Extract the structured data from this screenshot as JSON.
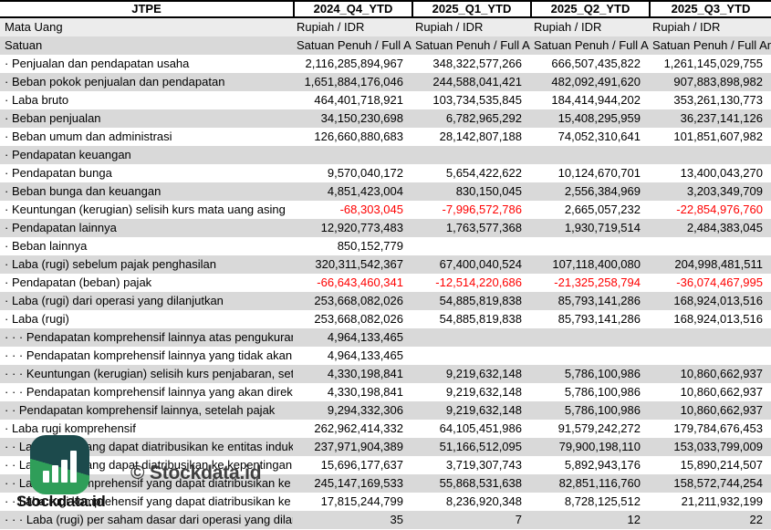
{
  "table": {
    "ticker": "JTPE",
    "columns": [
      "2024_Q4_YTD",
      "2025_Q1_YTD",
      "2025_Q2_YTD",
      "2025_Q3_YTD"
    ],
    "rows": [
      {
        "label": "Mata Uang",
        "bg": "l",
        "align": "left",
        "values": [
          "Rupiah / IDR",
          "Rupiah / IDR",
          "Rupiah / IDR",
          "Rupiah / IDR"
        ]
      },
      {
        "label": "Satuan",
        "bg": "g",
        "align": "left",
        "values": [
          "Satuan Penuh / Full Amount",
          "Satuan Penuh / Full Amount",
          "Satuan Penuh / Full Amount",
          "Satuan Penuh / Full Amount"
        ]
      },
      {
        "label": "· Penjualan dan pendapatan usaha",
        "bg": "w",
        "values": [
          "2,116,285,894,967",
          "348,322,577,266",
          "666,507,435,822",
          "1,261,145,029,755"
        ]
      },
      {
        "label": "· Beban pokok penjualan dan pendapatan",
        "bg": "g",
        "values": [
          "1,651,884,176,046",
          "244,588,041,421",
          "482,092,491,620",
          "907,883,898,982"
        ]
      },
      {
        "label": "· Laba bruto",
        "bg": "w",
        "values": [
          "464,401,718,921",
          "103,734,535,845",
          "184,414,944,202",
          "353,261,130,773"
        ]
      },
      {
        "label": "· Beban penjualan",
        "bg": "g",
        "values": [
          "34,150,230,698",
          "6,782,965,292",
          "15,408,295,959",
          "36,237,141,126"
        ]
      },
      {
        "label": "· Beban umum dan administrasi",
        "bg": "w",
        "values": [
          "126,660,880,683",
          "28,142,807,188",
          "74,052,310,641",
          "101,851,607,982"
        ]
      },
      {
        "label": "· Pendapatan keuangan",
        "bg": "g",
        "values": [
          "",
          "",
          "",
          ""
        ]
      },
      {
        "label": "· Pendapatan bunga",
        "bg": "w",
        "values": [
          "9,570,040,172",
          "5,654,422,622",
          "10,124,670,701",
          "13,400,043,270"
        ]
      },
      {
        "label": "· Beban bunga dan keuangan",
        "bg": "g",
        "values": [
          "4,851,423,004",
          "830,150,045",
          "2,556,384,969",
          "3,203,349,709"
        ]
      },
      {
        "label": "· Keuntungan (kerugian) selisih kurs mata uang asing",
        "bg": "w",
        "values": [
          "-68,303,045",
          "-7,996,572,786",
          "2,665,057,232",
          "-22,854,976,760"
        ]
      },
      {
        "label": "· Pendapatan lainnya",
        "bg": "g",
        "values": [
          "12,920,773,483",
          "1,763,577,368",
          "1,930,719,514",
          "2,484,383,045"
        ]
      },
      {
        "label": "· Beban lainnya",
        "bg": "w",
        "values": [
          "850,152,779",
          "",
          "",
          ""
        ]
      },
      {
        "label": "· Laba (rugi) sebelum pajak penghasilan",
        "bg": "g",
        "values": [
          "320,311,542,367",
          "67,400,040,524",
          "107,118,400,080",
          "204,998,481,511"
        ]
      },
      {
        "label": "· Pendapatan (beban) pajak",
        "bg": "w",
        "values": [
          "-66,643,460,341",
          "-12,514,220,686",
          "-21,325,258,794",
          "-36,074,467,995"
        ]
      },
      {
        "label": "· Laba (rugi) dari operasi yang dilanjutkan",
        "bg": "g",
        "values": [
          "253,668,082,026",
          "54,885,819,838",
          "85,793,141,286",
          "168,924,013,516"
        ]
      },
      {
        "label": "· Laba (rugi)",
        "bg": "w",
        "values": [
          "253,668,082,026",
          "54,885,819,838",
          "85,793,141,286",
          "168,924,013,516"
        ]
      },
      {
        "label": "· · · Pendapatan komprehensif lainnya atas pengukuran kembali",
        "bg": "g",
        "values": [
          "4,964,133,465",
          "",
          "",
          ""
        ]
      },
      {
        "label": "· · · Pendapatan komprehensif lainnya yang tidak akan direklasifikasi",
        "bg": "w",
        "values": [
          "4,964,133,465",
          "",
          "",
          ""
        ]
      },
      {
        "label": "· · · Keuntungan (kerugian) selisih kurs penjabaran, setelah pajak",
        "bg": "g",
        "values": [
          "4,330,198,841",
          "9,219,632,148",
          "5,786,100,986",
          "10,860,662,937"
        ]
      },
      {
        "label": "· · · Pendapatan komprehensif lainnya yang akan direklasifikasi",
        "bg": "w",
        "values": [
          "4,330,198,841",
          "9,219,632,148",
          "5,786,100,986",
          "10,860,662,937"
        ]
      },
      {
        "label": "· · Pendapatan komprehensif lainnya, setelah pajak",
        "bg": "g",
        "values": [
          "9,294,332,306",
          "9,219,632,148",
          "5,786,100,986",
          "10,860,662,937"
        ]
      },
      {
        "label": "· Laba rugi komprehensif",
        "bg": "w",
        "values": [
          "262,962,414,332",
          "64,105,451,986",
          "91,579,242,272",
          "179,784,676,453"
        ]
      },
      {
        "label": "· · Laba (rugi) yang dapat diatribusikan ke entitas induk",
        "bg": "g",
        "values": [
          "237,971,904,389",
          "51,166,512,095",
          "79,900,198,110",
          "153,033,799,009"
        ]
      },
      {
        "label": "· · Laba (rugi) yang dapat diatribusikan ke kepentingan",
        "bg": "w",
        "values": [
          "15,696,177,637",
          "3,719,307,743",
          "5,892,943,176",
          "15,890,214,507"
        ]
      },
      {
        "label": "· · Laba rugi komprehensif yang dapat diatribusikan ke",
        "bg": "g",
        "values": [
          "245,147,169,533",
          "55,868,531,638",
          "82,851,116,760",
          "158,572,744,254"
        ]
      },
      {
        "label": "· · Laba rugi komprehensif yang dapat diatribusikan ke",
        "bg": "w",
        "values": [
          "17,815,244,799",
          "8,236,920,348",
          "8,728,125,512",
          "21,211,932,199"
        ]
      },
      {
        "label": "· · · Laba (rugi) per saham dasar dari operasi yang dilanjutkan",
        "bg": "g",
        "values": [
          "35",
          "7",
          "12",
          "22"
        ]
      }
    ]
  },
  "watermark": {
    "text": "© Stockdata.id"
  },
  "logo": {
    "text": "Stockdata.id",
    "dark_color": "#1c4a4c",
    "green_color": "#2f9e59"
  },
  "status_colors": {
    "negative_value": "#fe0000"
  }
}
